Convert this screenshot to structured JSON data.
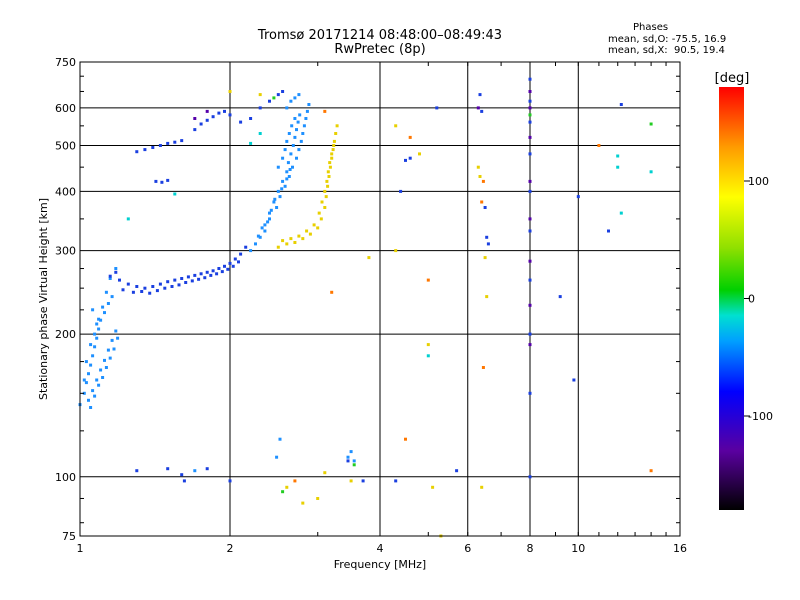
{
  "header": {
    "title": "Tromsø 20171214 08:48:00–08:49:43",
    "subtitle": "RwPretec (8p)"
  },
  "stats": {
    "heading": "Phases",
    "line_o": "mean, sd,O: -75.5, 16.9",
    "line_x": "mean, sd,X:  90.5, 19.4"
  },
  "colorbar": {
    "label": "[deg]",
    "ticks": [
      {
        "value": 100,
        "label": "100"
      },
      {
        "value": 0,
        "label": "0"
      },
      {
        "value": -100,
        "label": "-100"
      }
    ],
    "range": [
      -180,
      180
    ]
  },
  "chart_data": {
    "type": "scatter",
    "xlabel": "Frequency [MHz]",
    "ylabel": "Stationary phase Virtual Height [km]",
    "xscale": "log",
    "yscale": "log",
    "xlim": [
      1,
      16
    ],
    "ylim": [
      75,
      750
    ],
    "xticks": [
      {
        "value": 1,
        "label": "1"
      },
      {
        "value": 2,
        "label": "2"
      },
      {
        "value": 4,
        "label": "4"
      },
      {
        "value": 6,
        "label": "6"
      },
      {
        "value": 8,
        "label": "8"
      },
      {
        "value": 10,
        "label": "10"
      },
      {
        "value": 16,
        "label": "16"
      }
    ],
    "yticks": [
      {
        "value": 75,
        "label": "75"
      },
      {
        "value": 100,
        "label": "100"
      },
      {
        "value": 200,
        "label": "200"
      },
      {
        "value": 300,
        "label": "300"
      },
      {
        "value": 400,
        "label": "400"
      },
      {
        "value": 500,
        "label": "500"
      },
      {
        "value": 600,
        "label": "600"
      },
      {
        "value": 750,
        "label": "750"
      }
    ],
    "grid": true,
    "series": [
      {
        "color": "#1e90ff",
        "points": [
          [
            1.02,
            150
          ],
          [
            1.03,
            158
          ],
          [
            1.04,
            165
          ],
          [
            1.05,
            172
          ],
          [
            1.06,
            180
          ],
          [
            1.07,
            188
          ],
          [
            1.08,
            196
          ],
          [
            1.09,
            205
          ],
          [
            1.1,
            214
          ],
          [
            1.12,
            222
          ],
          [
            1.14,
            232
          ],
          [
            1.16,
            240
          ],
          [
            1.04,
            145
          ],
          [
            1.06,
            152
          ],
          [
            1.08,
            160
          ],
          [
            1.1,
            168
          ],
          [
            1.12,
            176
          ],
          [
            1.14,
            185
          ],
          [
            1.16,
            194
          ],
          [
            1.18,
            203
          ],
          [
            1.0,
            142
          ],
          [
            1.02,
            160
          ],
          [
            1.03,
            175
          ],
          [
            1.05,
            190
          ],
          [
            1.07,
            200
          ],
          [
            1.09,
            215
          ],
          [
            1.11,
            228
          ],
          [
            1.13,
            245
          ],
          [
            1.15,
            262
          ],
          [
            1.18,
            275
          ],
          [
            1.05,
            140
          ],
          [
            1.07,
            148
          ],
          [
            1.09,
            156
          ],
          [
            1.11,
            162
          ],
          [
            1.13,
            170
          ],
          [
            1.15,
            178
          ],
          [
            1.17,
            186
          ],
          [
            1.19,
            196
          ],
          [
            1.08,
            210
          ],
          [
            1.06,
            225
          ],
          [
            2.35,
            340
          ],
          [
            2.4,
            360
          ],
          [
            2.45,
            380
          ],
          [
            2.5,
            400
          ],
          [
            2.55,
            420
          ],
          [
            2.6,
            440
          ],
          [
            2.62,
            460
          ],
          [
            2.65,
            480
          ],
          [
            2.68,
            500
          ],
          [
            2.7,
            520
          ],
          [
            2.72,
            540
          ],
          [
            2.74,
            560
          ],
          [
            2.76,
            580
          ],
          [
            2.5,
            450
          ],
          [
            2.55,
            470
          ],
          [
            2.58,
            490
          ],
          [
            2.6,
            510
          ],
          [
            2.63,
            530
          ],
          [
            2.66,
            550
          ],
          [
            2.7,
            570
          ],
          [
            2.3,
            320
          ],
          [
            2.35,
            330
          ],
          [
            2.4,
            350
          ],
          [
            2.48,
            370
          ],
          [
            2.52,
            390
          ],
          [
            2.58,
            410
          ],
          [
            2.63,
            430
          ],
          [
            2.67,
            450
          ],
          [
            2.72,
            470
          ],
          [
            2.75,
            490
          ],
          [
            2.78,
            510
          ],
          [
            2.8,
            530
          ],
          [
            2.82,
            550
          ],
          [
            2.84,
            570
          ],
          [
            2.86,
            590
          ],
          [
            2.88,
            610
          ],
          [
            2.6,
            600
          ],
          [
            2.65,
            620
          ],
          [
            2.7,
            630
          ],
          [
            2.75,
            640
          ],
          [
            2.2,
            300
          ],
          [
            2.25,
            310
          ],
          [
            2.28,
            322
          ],
          [
            2.32,
            335
          ],
          [
            2.38,
            345
          ],
          [
            2.42,
            365
          ],
          [
            2.46,
            385
          ],
          [
            2.54,
            405
          ],
          [
            2.6,
            425
          ],
          [
            2.64,
            445
          ],
          [
            2.52,
            120
          ],
          [
            2.48,
            110
          ],
          [
            3.45,
            110
          ],
          [
            3.5,
            113
          ],
          [
            3.55,
            108
          ],
          [
            1.7,
            103
          ]
        ]
      },
      {
        "color": "#1a3fe0",
        "points": [
          [
            1.2,
            260
          ],
          [
            1.25,
            255
          ],
          [
            1.3,
            252
          ],
          [
            1.35,
            250
          ],
          [
            1.4,
            252
          ],
          [
            1.45,
            255
          ],
          [
            1.5,
            258
          ],
          [
            1.55,
            260
          ],
          [
            1.6,
            262
          ],
          [
            1.65,
            264
          ],
          [
            1.7,
            266
          ],
          [
            1.75,
            268
          ],
          [
            1.8,
            270
          ],
          [
            1.85,
            272
          ],
          [
            1.9,
            275
          ],
          [
            1.95,
            278
          ],
          [
            2.0,
            282
          ],
          [
            2.05,
            288
          ],
          [
            2.1,
            295
          ],
          [
            2.15,
            305
          ],
          [
            1.22,
            248
          ],
          [
            1.28,
            245
          ],
          [
            1.33,
            246
          ],
          [
            1.38,
            244
          ],
          [
            1.43,
            247
          ],
          [
            1.48,
            250
          ],
          [
            1.53,
            252
          ],
          [
            1.58,
            254
          ],
          [
            1.63,
            257
          ],
          [
            1.68,
            259
          ],
          [
            1.73,
            261
          ],
          [
            1.78,
            263
          ],
          [
            1.83,
            266
          ],
          [
            1.88,
            268
          ],
          [
            1.93,
            271
          ],
          [
            1.98,
            274
          ],
          [
            2.03,
            278
          ],
          [
            2.08,
            284
          ],
          [
            1.15,
            265
          ],
          [
            1.18,
            270
          ],
          [
            1.3,
            485
          ],
          [
            1.35,
            490
          ],
          [
            1.4,
            495
          ],
          [
            1.45,
            500
          ],
          [
            1.5,
            505
          ],
          [
            1.55,
            508
          ],
          [
            1.6,
            512
          ],
          [
            1.42,
            420
          ],
          [
            1.46,
            418
          ],
          [
            1.5,
            422
          ],
          [
            1.7,
            540
          ],
          [
            1.75,
            555
          ],
          [
            1.8,
            565
          ],
          [
            1.85,
            575
          ],
          [
            1.9,
            585
          ],
          [
            1.95,
            590
          ],
          [
            2.0,
            580
          ],
          [
            2.1,
            560
          ],
          [
            2.2,
            570
          ],
          [
            2.3,
            600
          ],
          [
            2.4,
            620
          ],
          [
            2.5,
            640
          ],
          [
            2.55,
            650
          ],
          [
            1.3,
            103
          ],
          [
            1.5,
            104
          ],
          [
            1.6,
            101
          ],
          [
            1.62,
            98
          ],
          [
            1.8,
            104
          ],
          [
            2.0,
            98
          ],
          [
            3.45,
            108
          ],
          [
            3.7,
            98
          ],
          [
            4.3,
            98
          ],
          [
            5.7,
            103
          ],
          [
            4.4,
            400
          ],
          [
            4.5,
            465
          ],
          [
            4.6,
            470
          ],
          [
            5.2,
            600
          ],
          [
            6.35,
            640
          ],
          [
            6.4,
            590
          ],
          [
            6.5,
            370
          ],
          [
            6.55,
            320
          ],
          [
            6.6,
            310
          ],
          [
            8.0,
            100
          ],
          [
            8.0,
            150
          ],
          [
            8.0,
            200
          ],
          [
            8.0,
            260
          ],
          [
            8.0,
            330
          ],
          [
            8.0,
            400
          ],
          [
            8.0,
            480
          ],
          [
            8.0,
            560
          ],
          [
            8.0,
            620
          ],
          [
            8.0,
            690
          ],
          [
            9.2,
            240
          ],
          [
            9.8,
            160
          ],
          [
            10.0,
            390
          ],
          [
            11.5,
            330
          ],
          [
            12.2,
            610
          ]
        ]
      },
      {
        "color": "#e8d000",
        "points": [
          [
            2.5,
            305
          ],
          [
            2.6,
            310
          ],
          [
            2.7,
            312
          ],
          [
            2.8,
            318
          ],
          [
            2.9,
            325
          ],
          [
            3.0,
            335
          ],
          [
            3.05,
            350
          ],
          [
            3.1,
            370
          ],
          [
            3.12,
            390
          ],
          [
            3.14,
            410
          ],
          [
            3.16,
            430
          ],
          [
            3.18,
            450
          ],
          [
            3.2,
            470
          ],
          [
            3.22,
            490
          ],
          [
            3.24,
            510
          ],
          [
            3.26,
            530
          ],
          [
            3.28,
            550
          ],
          [
            2.55,
            315
          ],
          [
            2.65,
            318
          ],
          [
            2.75,
            322
          ],
          [
            2.85,
            330
          ],
          [
            2.95,
            340
          ],
          [
            3.02,
            360
          ],
          [
            3.06,
            380
          ],
          [
            3.1,
            400
          ],
          [
            3.13,
            420
          ],
          [
            3.15,
            440
          ],
          [
            3.17,
            460
          ],
          [
            3.2,
            480
          ],
          [
            3.23,
            500
          ],
          [
            4.3,
            550
          ],
          [
            4.3,
            300
          ],
          [
            5.0,
            190
          ],
          [
            5.1,
            95
          ],
          [
            5.3,
            75
          ],
          [
            6.3,
            450
          ],
          [
            6.35,
            430
          ],
          [
            6.5,
            290
          ],
          [
            6.55,
            240
          ],
          [
            6.4,
            95
          ],
          [
            4.8,
            480
          ],
          [
            2.6,
            95
          ],
          [
            2.8,
            88
          ],
          [
            3.0,
            90
          ],
          [
            3.1,
            102
          ],
          [
            3.5,
            98
          ],
          [
            3.8,
            290
          ],
          [
            2.3,
            640
          ],
          [
            2.0,
            650
          ]
        ]
      },
      {
        "color": "#ff7700",
        "points": [
          [
            3.1,
            590
          ],
          [
            4.6,
            520
          ],
          [
            5.0,
            260
          ],
          [
            6.45,
            170
          ],
          [
            6.4,
            380
          ],
          [
            6.45,
            420
          ],
          [
            11.0,
            500
          ],
          [
            14.0,
            103
          ],
          [
            3.2,
            245
          ],
          [
            2.7,
            98
          ],
          [
            4.5,
            120
          ]
        ]
      },
      {
        "color": "#00d0d0",
        "points": [
          [
            12.0,
            450
          ],
          [
            12.0,
            475
          ],
          [
            12.2,
            360
          ],
          [
            14.0,
            440
          ],
          [
            2.2,
            505
          ],
          [
            2.3,
            530
          ],
          [
            1.55,
            395
          ],
          [
            1.25,
            350
          ],
          [
            5.0,
            180
          ]
        ]
      },
      {
        "color": "#22cc22",
        "points": [
          [
            14.0,
            555
          ],
          [
            3.55,
            106
          ],
          [
            2.55,
            93
          ],
          [
            8.0,
            580
          ],
          [
            2.45,
            630
          ]
        ]
      },
      {
        "color": "#5500aa",
        "points": [
          [
            8.0,
            190
          ],
          [
            8.0,
            230
          ],
          [
            8.0,
            285
          ],
          [
            8.0,
            350
          ],
          [
            8.0,
            420
          ],
          [
            8.0,
            520
          ],
          [
            8.0,
            600
          ],
          [
            8.0,
            650
          ],
          [
            6.3,
            600
          ],
          [
            1.7,
            570
          ],
          [
            1.8,
            590
          ]
        ]
      }
    ]
  }
}
